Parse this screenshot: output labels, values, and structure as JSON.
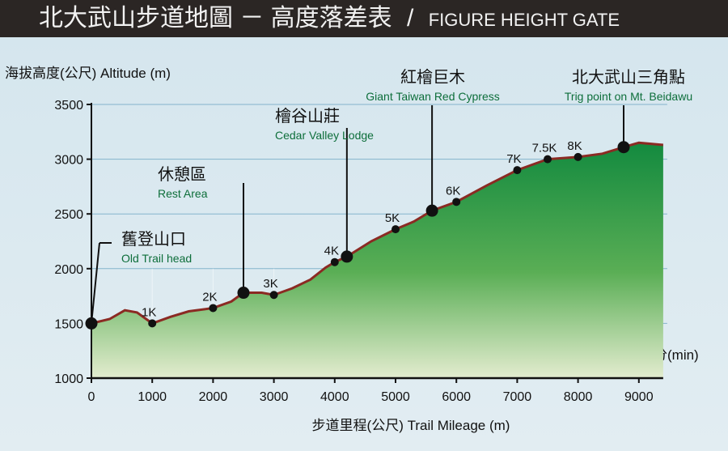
{
  "header": {
    "title_zh": "北大武山步道地圖 － 高度落差表",
    "separator": "/",
    "title_en": "FIGURE HEIGHT GATE"
  },
  "chart_data": {
    "type": "area",
    "title": "北大武山步道地圖 － 高度落差表 / FIGURE HEIGHT GATE",
    "ylabel": "海拔高度(公尺) Altitude (m)",
    "xlabel": "步道里程(公尺) Trail Mileage (m)",
    "time_unit_label": "分(min)",
    "xlim": [
      0,
      9400
    ],
    "ylim": [
      1000,
      3500
    ],
    "xticks": [
      0,
      1000,
      2000,
      3000,
      4000,
      5000,
      6000,
      7000,
      8000,
      9000
    ],
    "yticks": [
      1000,
      1500,
      2000,
      2500,
      3000,
      3500
    ],
    "grid": "horizontal",
    "profile": [
      [
        0,
        1500
      ],
      [
        300,
        1540
      ],
      [
        550,
        1620
      ],
      [
        750,
        1600
      ],
      [
        1000,
        1500
      ],
      [
        1300,
        1560
      ],
      [
        1600,
        1610
      ],
      [
        2000,
        1640
      ],
      [
        2300,
        1700
      ],
      [
        2500,
        1780
      ],
      [
        2800,
        1780
      ],
      [
        3000,
        1760
      ],
      [
        3300,
        1820
      ],
      [
        3600,
        1900
      ],
      [
        3850,
        2010
      ],
      [
        4000,
        2060
      ],
      [
        4200,
        2110
      ],
      [
        4600,
        2250
      ],
      [
        5000,
        2360
      ],
      [
        5300,
        2430
      ],
      [
        5600,
        2530
      ],
      [
        6000,
        2610
      ],
      [
        6500,
        2760
      ],
      [
        7000,
        2900
      ],
      [
        7500,
        3000
      ],
      [
        8000,
        3020
      ],
      [
        8400,
        3050
      ],
      [
        8750,
        3110
      ],
      [
        9000,
        3150
      ],
      [
        9400,
        3130
      ]
    ],
    "km_markers": [
      {
        "label": "1K",
        "x": 1000,
        "y": 1500
      },
      {
        "label": "2K",
        "x": 2000,
        "y": 1640
      },
      {
        "label": "3K",
        "x": 3000,
        "y": 1760
      },
      {
        "label": "4K",
        "x": 4000,
        "y": 2060
      },
      {
        "label": "5K",
        "x": 5000,
        "y": 2360
      },
      {
        "label": "6K",
        "x": 6000,
        "y": 2610
      },
      {
        "label": "7K",
        "x": 7000,
        "y": 2900
      },
      {
        "label": "7.5K",
        "x": 7500,
        "y": 3000
      },
      {
        "label": "8K",
        "x": 8000,
        "y": 3020
      }
    ],
    "landmarks": [
      {
        "zh": "舊登山口",
        "en": "Old Trail head",
        "x": 0,
        "y": 1500
      },
      {
        "zh": "休憩區",
        "en": "Rest Area",
        "x": 2500,
        "y": 1780
      },
      {
        "zh": "檜谷山莊",
        "en": "Cedar Valley Lodge",
        "x": 4200,
        "y": 2110
      },
      {
        "zh": "紅檜巨木",
        "en": "Giant Taiwan Red Cypress",
        "x": 5600,
        "y": 2530
      },
      {
        "zh": "北大武山三角點",
        "en": "Trig point on Mt. Beidawu",
        "x": 8750,
        "y": 3110
      }
    ],
    "colors": {
      "line": "#8b2a23",
      "fill_top": "#138a3f",
      "fill_bottom": "#e3eccf",
      "label_green": "#0d6e3a",
      "grid": "#6fa7c4"
    }
  }
}
